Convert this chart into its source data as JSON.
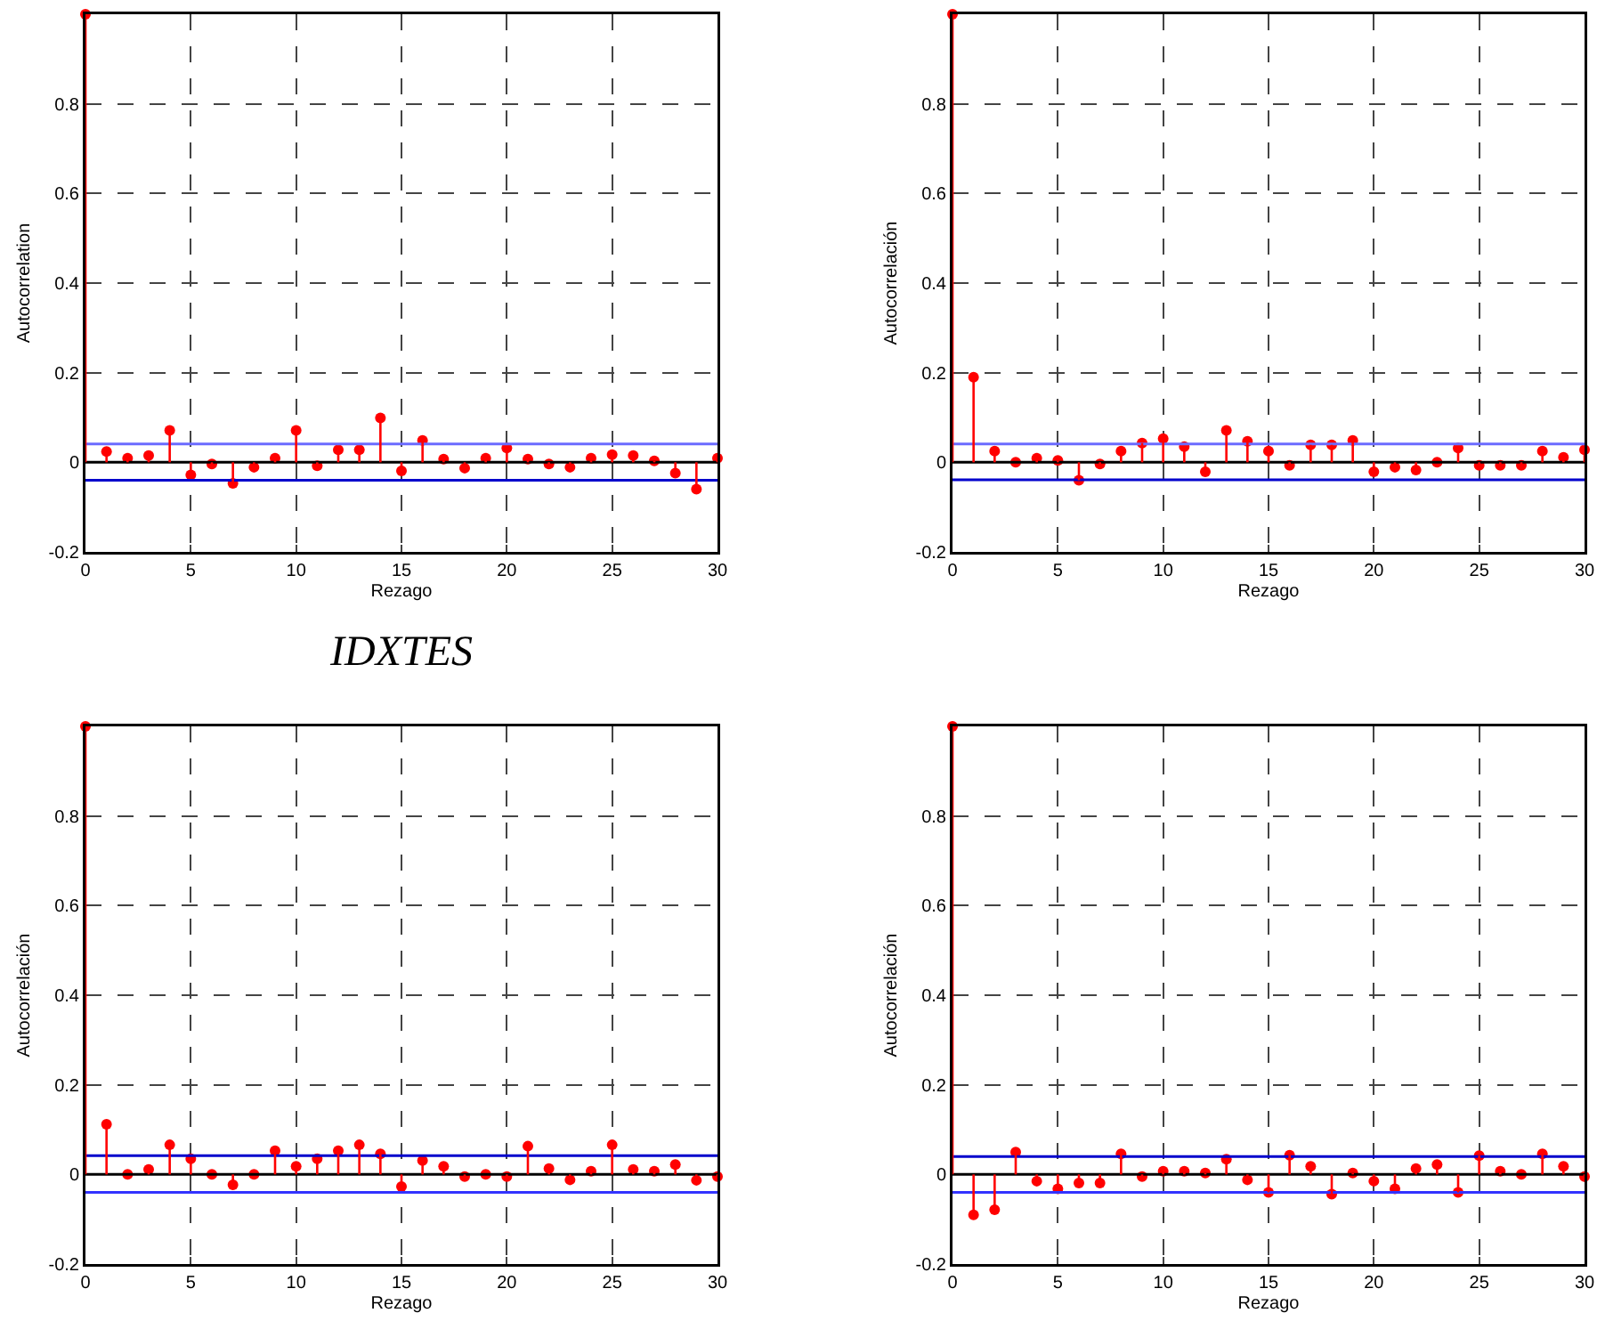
{
  "chart_data": [
    {
      "type": "lollipop",
      "title": "IDXTES",
      "xlabel": "Rezago",
      "ylabel": "Autocorrelation",
      "x": [
        0,
        1,
        2,
        3,
        4,
        5,
        6,
        7,
        8,
        9,
        10,
        11,
        12,
        13,
        14,
        15,
        16,
        17,
        18,
        19,
        20,
        21,
        22,
        23,
        24,
        25,
        26,
        27,
        28,
        29,
        30
      ],
      "series": [
        {
          "color": "#ff0000",
          "values": [
            1,
            0.024,
            0.009,
            0.015,
            0.071,
            -0.028,
            -0.004,
            -0.047,
            -0.011,
            0.009,
            0.071,
            -0.008,
            0.028,
            0.028,
            0.099,
            -0.019,
            0.049,
            0.007,
            -0.013,
            0.009,
            0.032,
            0.007,
            -0.004,
            -0.011,
            0.009,
            0.017,
            0.015,
            0.003,
            -0.024,
            -0.06,
            0.009
          ]
        }
      ],
      "xlim": [
        0,
        30
      ],
      "xticks": [
        0,
        5,
        10,
        15,
        20,
        25,
        30
      ],
      "ylim": [
        -0.2,
        1
      ],
      "yticks": [
        -0.2,
        0,
        0.2,
        0.4,
        0.6,
        0.8
      ],
      "grid": true,
      "marker": "circle",
      "ref_lines": [
        {
          "axis": "y",
          "value": 0,
          "color": "#000000"
        },
        {
          "axis": "y",
          "value": 0.041,
          "color": "#6b6bff"
        },
        {
          "axis": "y",
          "value": -0.04,
          "color": "#0000cc"
        }
      ]
    },
    {
      "type": "lollipop",
      "xlabel": "Rezago",
      "ylabel": "Autocorrelación",
      "x": [
        0,
        1,
        2,
        3,
        4,
        5,
        6,
        7,
        8,
        9,
        10,
        11,
        12,
        13,
        14,
        15,
        16,
        17,
        18,
        19,
        20,
        21,
        22,
        23,
        24,
        25,
        26,
        27,
        28,
        29,
        30
      ],
      "series": [
        {
          "color": "#ff0000",
          "values": [
            1,
            0.19,
            0.025,
            0,
            0.009,
            0.004,
            -0.04,
            -0.004,
            0.025,
            0.043,
            0.053,
            0.035,
            -0.021,
            0.071,
            0.047,
            0.025,
            -0.007,
            0.039,
            0.039,
            0.049,
            -0.021,
            -0.011,
            -0.017,
            0,
            0.032,
            -0.007,
            -0.007,
            -0.007,
            0.025,
            0.011,
            0.028
          ]
        }
      ],
      "xlim": [
        0,
        30
      ],
      "xticks": [
        0,
        5,
        10,
        15,
        20,
        25,
        30
      ],
      "ylim": [
        -0.2,
        1
      ],
      "yticks": [
        -0.2,
        0,
        0.2,
        0.4,
        0.6,
        0.8
      ],
      "grid": true,
      "marker": "circle",
      "ref_lines": [
        {
          "axis": "y",
          "value": 0,
          "color": "#000000"
        },
        {
          "axis": "y",
          "value": 0.041,
          "color": "#6b6bff"
        },
        {
          "axis": "y",
          "value": -0.039,
          "color": "#0000cc"
        }
      ]
    },
    {
      "type": "lollipop",
      "xlabel": "Rezago",
      "ylabel": "Autocorrelación",
      "x": [
        0,
        1,
        2,
        3,
        4,
        5,
        6,
        7,
        8,
        9,
        10,
        11,
        12,
        13,
        14,
        15,
        16,
        17,
        18,
        19,
        20,
        21,
        22,
        23,
        24,
        25,
        26,
        27,
        28,
        29,
        30
      ],
      "series": [
        {
          "color": "#ff0000",
          "values": [
            1,
            0.112,
            0,
            0.011,
            0.066,
            0.035,
            0,
            -0.023,
            0,
            0.053,
            0.018,
            0.035,
            0.053,
            0.066,
            0.046,
            -0.027,
            0.031,
            0.018,
            -0.005,
            0,
            -0.005,
            0.063,
            0.013,
            -0.012,
            0.007,
            0.066,
            0.011,
            0.007,
            0.022,
            -0.013,
            -0.005
          ]
        }
      ],
      "xlim": [
        0,
        30
      ],
      "xticks": [
        0,
        5,
        10,
        15,
        20,
        25,
        30
      ],
      "ylim": [
        -0.2,
        1
      ],
      "yticks": [
        -0.2,
        0,
        0.2,
        0.4,
        0.6,
        0.8
      ],
      "grid": true,
      "marker": "circle",
      "ref_lines": [
        {
          "axis": "y",
          "value": 0,
          "color": "#000000"
        },
        {
          "axis": "y",
          "value": 0.042,
          "color": "#0000cc"
        },
        {
          "axis": "y",
          "value": -0.04,
          "color": "#3333ff"
        }
      ]
    },
    {
      "type": "lollipop",
      "xlabel": "Rezago",
      "ylabel": "Autocorrelación",
      "x": [
        0,
        1,
        2,
        3,
        4,
        5,
        6,
        7,
        8,
        9,
        10,
        11,
        12,
        13,
        14,
        15,
        16,
        17,
        18,
        19,
        20,
        21,
        22,
        23,
        24,
        25,
        26,
        27,
        28,
        29,
        30
      ],
      "series": [
        {
          "color": "#ff0000",
          "values": [
            1,
            -0.09,
            -0.079,
            0.05,
            -0.015,
            -0.032,
            -0.019,
            -0.019,
            0.046,
            -0.005,
            0.007,
            0.007,
            0.003,
            0.034,
            -0.012,
            -0.04,
            0.043,
            0.018,
            -0.044,
            0.003,
            -0.015,
            -0.032,
            0.013,
            0.022,
            -0.04,
            0.042,
            0.007,
            0,
            0.046,
            0.018,
            -0.005
          ]
        }
      ],
      "xlim": [
        0,
        30
      ],
      "xticks": [
        0,
        5,
        10,
        15,
        20,
        25,
        30
      ],
      "ylim": [
        -0.2,
        1
      ],
      "yticks": [
        -0.2,
        0,
        0.2,
        0.4,
        0.6,
        0.8
      ],
      "grid": true,
      "marker": "circle",
      "ref_lines": [
        {
          "axis": "y",
          "value": 0,
          "color": "#000000"
        },
        {
          "axis": "y",
          "value": 0.04,
          "color": "#0000cc"
        },
        {
          "axis": "y",
          "value": -0.04,
          "color": "#3333ff"
        }
      ]
    }
  ]
}
